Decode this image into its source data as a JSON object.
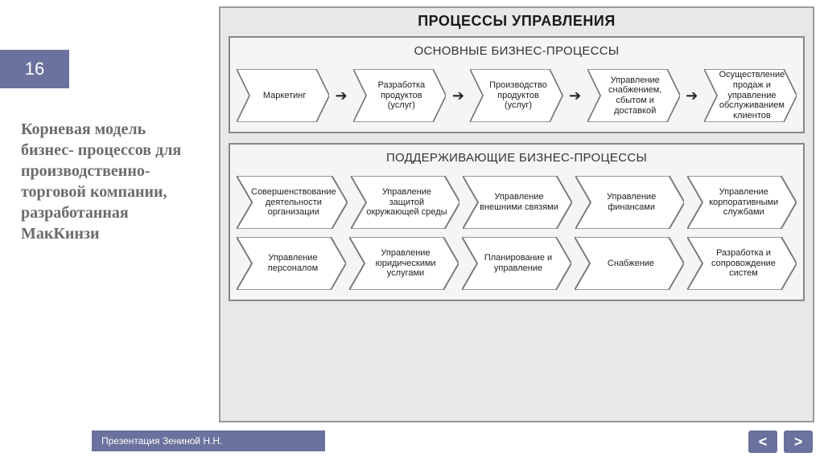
{
  "slide_number": "16",
  "sidebar_title": "Корневая модель бизнес- процессов для производственно- торговой компании, разработанная МакКинзи",
  "footer_text": "Презентация Зениной Н.Н.",
  "nav": {
    "prev": "<",
    "next": ">"
  },
  "diagram": {
    "type": "flowchart",
    "main_title": "ПРОЦЕССЫ УПРАВЛЕНИЯ",
    "background_color": "#e8e8e8",
    "border_color": "#999999",
    "chevron_fill": "#ffffff",
    "chevron_stroke": "#777777",
    "chevron_stroke_width": 1.5,
    "label_fontsize": 11,
    "title_fontsize": 18,
    "section_title_fontsize": 15,
    "accent_color": "#6b729e",
    "sections": [
      {
        "title": "ОСНОВНЫЕ БИЗНЕС-ПРОЦЕССЫ",
        "rows": [
          {
            "linked": true,
            "items": [
              "Маркетинг",
              "Разработка продуктов (услуг)",
              "Производство продуктов (услуг)",
              "Управление снабжением, сбытом и доставкой",
              "Осуществление продаж и управление обслуживанием клиентов"
            ]
          }
        ]
      },
      {
        "title": "ПОДДЕРЖИВАЮЩИЕ БИЗНЕС-ПРОЦЕССЫ",
        "rows": [
          {
            "linked": false,
            "items": [
              "Совершенствование деятельности организации",
              "Управление защитой окружающей среды",
              "Управление внешними связями",
              "Управление финансами",
              "Управление корпоративными службами"
            ]
          },
          {
            "linked": false,
            "items": [
              "Управление персоналом",
              "Управление юридическими услугами",
              "Планирование и управление",
              "Снабжение",
              "Разработка и сопровождение систем"
            ]
          }
        ]
      }
    ]
  }
}
